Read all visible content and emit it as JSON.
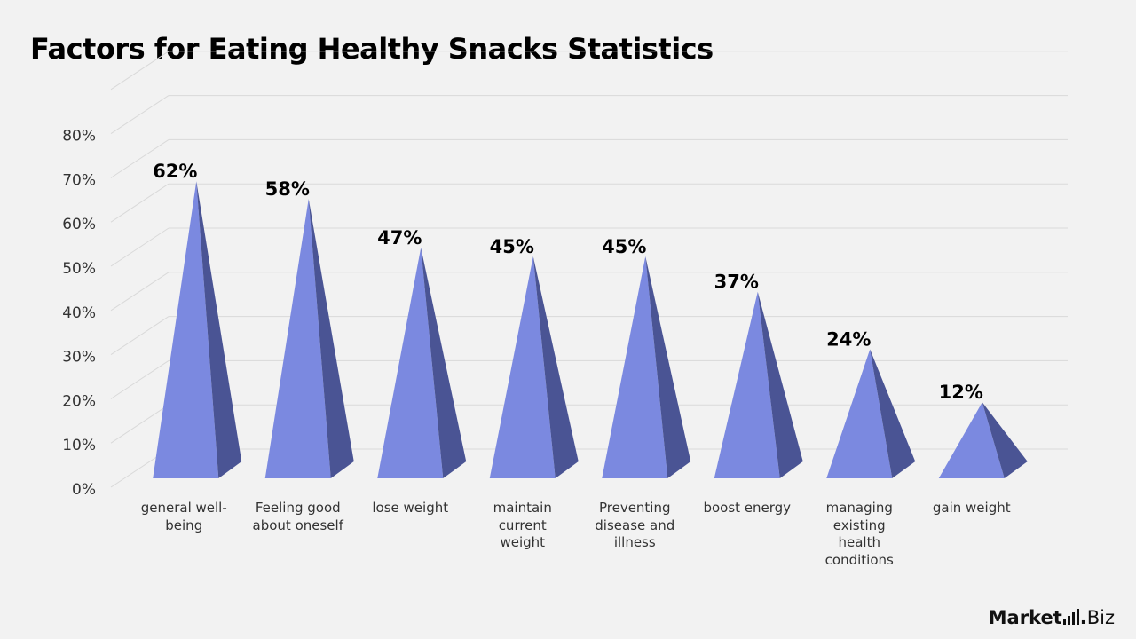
{
  "title": "Factors for Eating Healthy Snacks Statistics",
  "brand": {
    "part1": "Market",
    "part2": "Biz",
    "separator": "."
  },
  "colors": {
    "front": "#7b89e0",
    "side": "#4a5494",
    "grid": "#d9d9d9",
    "background": "#f2f2f2"
  },
  "chart_data": {
    "type": "bar",
    "shape": "pyramid-3d",
    "title": "Factors for Eating Healthy Snacks Statistics",
    "categories": [
      "general well-being",
      "Feeling good about oneself",
      "lose weight",
      "maintain current weight",
      "Preventing disease and illness",
      "boost energy",
      "managing existing health conditions",
      "gain weight"
    ],
    "category_lines": [
      [
        "general well-",
        "being"
      ],
      [
        "Feeling good",
        "about oneself"
      ],
      [
        "lose weight"
      ],
      [
        "maintain",
        "current",
        "weight"
      ],
      [
        "Preventing",
        "disease and",
        "illness"
      ],
      [
        "boost energy"
      ],
      [
        "managing",
        "existing",
        "health",
        "conditions"
      ],
      [
        "gain weight"
      ]
    ],
    "values": [
      62,
      58,
      47,
      45,
      45,
      37,
      24,
      12
    ],
    "data_labels": [
      "62%",
      "58%",
      "47%",
      "45%",
      "45%",
      "37%",
      "24%",
      "12%"
    ],
    "y_ticks": [
      0,
      10,
      20,
      30,
      40,
      50,
      60,
      70,
      80
    ],
    "y_tick_labels": [
      "0%",
      "10%",
      "20%",
      "30%",
      "40%",
      "50%",
      "60%",
      "70%",
      "80%"
    ],
    "ylim": [
      0,
      90
    ],
    "xlabel": "",
    "ylabel": "",
    "grid": true,
    "legend": "none"
  }
}
